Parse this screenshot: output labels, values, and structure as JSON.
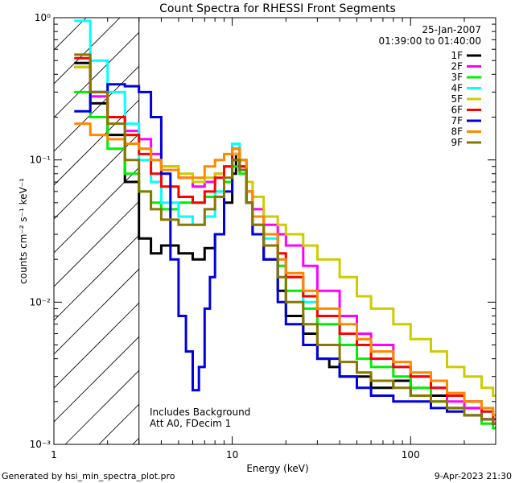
{
  "chart_data": {
    "type": "line",
    "title": "Count Spectra for RHESSI Front Segments",
    "xlabel": "Energy (keV)",
    "ylabel": "counts cm⁻² s⁻¹ keV⁻¹",
    "xscale": "log",
    "yscale": "log",
    "xlim": [
      1,
      300
    ],
    "ylim": [
      0.001,
      1
    ],
    "x_ticks": [
      {
        "value": 1,
        "label": "1"
      },
      {
        "value": 10,
        "label": "10"
      },
      {
        "value": 100,
        "label": "100"
      }
    ],
    "y_ticks": [
      {
        "value": 1,
        "label": "10⁰"
      },
      {
        "value": 0.1,
        "label": "10⁻¹"
      },
      {
        "value": 0.01,
        "label": "10⁻²"
      },
      {
        "value": 0.001,
        "label": "10⁻³"
      }
    ],
    "date_label": "25-Jan-2007",
    "time_label": "01:39:00 to 01:40:00",
    "shaded_region_max_energy": 3,
    "annotations": [
      "Includes Background",
      "Att A0, FDecim 1"
    ],
    "series": [
      {
        "name": "1F",
        "color": "#000000",
        "points": [
          [
            1.3,
            0.48
          ],
          [
            1.6,
            0.25
          ],
          [
            2.0,
            0.15
          ],
          [
            2.5,
            0.07
          ],
          [
            3.0,
            0.028
          ],
          [
            3.5,
            0.022
          ],
          [
            4.0,
            0.025
          ],
          [
            5.0,
            0.022
          ],
          [
            6.0,
            0.02
          ],
          [
            7.0,
            0.024
          ],
          [
            8.0,
            0.03
          ],
          [
            9.0,
            0.05
          ],
          [
            10.0,
            0.08
          ],
          [
            10.5,
            0.11
          ],
          [
            11.0,
            0.1
          ],
          [
            12.0,
            0.05
          ],
          [
            13,
            0.03
          ],
          [
            15,
            0.02
          ],
          [
            18,
            0.012
          ],
          [
            20,
            0.008
          ],
          [
            25,
            0.006
          ],
          [
            30,
            0.004
          ],
          [
            35,
            0.0035
          ],
          [
            40,
            0.003
          ],
          [
            50,
            0.003
          ],
          [
            60,
            0.0025
          ],
          [
            80,
            0.0028
          ],
          [
            100,
            0.0022
          ],
          [
            130,
            0.0022
          ],
          [
            160,
            0.0018
          ],
          [
            200,
            0.0018
          ],
          [
            250,
            0.0015
          ],
          [
            290,
            0.0015
          ]
        ]
      },
      {
        "name": "2F",
        "color": "#ff00ff",
        "points": [
          [
            1.3,
            0.45
          ],
          [
            1.6,
            0.28
          ],
          [
            2.0,
            0.2
          ],
          [
            2.5,
            0.16
          ],
          [
            3.0,
            0.14
          ],
          [
            3.5,
            0.11
          ],
          [
            4.0,
            0.09
          ],
          [
            5.0,
            0.075
          ],
          [
            6.0,
            0.065
          ],
          [
            7.0,
            0.07
          ],
          [
            8.0,
            0.08
          ],
          [
            9.0,
            0.09
          ],
          [
            10.0,
            0.11
          ],
          [
            11.0,
            0.09
          ],
          [
            12,
            0.06
          ],
          [
            13,
            0.045
          ],
          [
            15,
            0.035
          ],
          [
            18,
            0.03
          ],
          [
            20,
            0.025
          ],
          [
            25,
            0.018
          ],
          [
            30,
            0.012
          ],
          [
            40,
            0.008
          ],
          [
            50,
            0.006
          ],
          [
            60,
            0.005
          ],
          [
            80,
            0.0035
          ],
          [
            100,
            0.003
          ],
          [
            130,
            0.0025
          ],
          [
            160,
            0.002
          ],
          [
            200,
            0.0018
          ],
          [
            250,
            0.0015
          ],
          [
            290,
            0.0014
          ]
        ]
      },
      {
        "name": "3F",
        "color": "#00ee00",
        "points": [
          [
            1.3,
            0.3
          ],
          [
            1.6,
            0.2
          ],
          [
            2.0,
            0.12
          ],
          [
            2.5,
            0.08
          ],
          [
            3.0,
            0.06
          ],
          [
            3.5,
            0.05
          ],
          [
            4.0,
            0.045
          ],
          [
            5.0,
            0.05
          ],
          [
            6.0,
            0.05
          ],
          [
            7.0,
            0.055
          ],
          [
            8.0,
            0.06
          ],
          [
            9.0,
            0.07
          ],
          [
            10.0,
            0.09
          ],
          [
            11.0,
            0.08
          ],
          [
            12,
            0.05
          ],
          [
            13,
            0.035
          ],
          [
            15,
            0.025
          ],
          [
            18,
            0.018
          ],
          [
            20,
            0.012
          ],
          [
            25,
            0.009
          ],
          [
            30,
            0.007
          ],
          [
            40,
            0.005
          ],
          [
            50,
            0.004
          ],
          [
            60,
            0.0035
          ],
          [
            80,
            0.003
          ],
          [
            100,
            0.0025
          ],
          [
            130,
            0.002
          ],
          [
            160,
            0.0018
          ],
          [
            200,
            0.0016
          ],
          [
            250,
            0.0014
          ],
          [
            290,
            0.0013
          ]
        ]
      },
      {
        "name": "4F",
        "color": "#00ffff",
        "points": [
          [
            1.3,
            0.95
          ],
          [
            1.6,
            0.5
          ],
          [
            2.0,
            0.3
          ],
          [
            2.5,
            0.18
          ],
          [
            3.0,
            0.1
          ],
          [
            3.5,
            0.07
          ],
          [
            4.0,
            0.05
          ],
          [
            5.0,
            0.04
          ],
          [
            6.0,
            0.035
          ],
          [
            7.0,
            0.04
          ],
          [
            8.0,
            0.06
          ],
          [
            9.0,
            0.09
          ],
          [
            10.0,
            0.13
          ],
          [
            11.0,
            0.1
          ],
          [
            12,
            0.06
          ],
          [
            13,
            0.04
          ],
          [
            15,
            0.028
          ],
          [
            18,
            0.02
          ],
          [
            20,
            0.015
          ],
          [
            25,
            0.01
          ],
          [
            30,
            0.008
          ],
          [
            40,
            0.006
          ],
          [
            50,
            0.005
          ],
          [
            60,
            0.004
          ],
          [
            80,
            0.0035
          ],
          [
            100,
            0.003
          ],
          [
            130,
            0.0025
          ],
          [
            160,
            0.0022
          ],
          [
            200,
            0.002
          ],
          [
            250,
            0.0017
          ],
          [
            290,
            0.0015
          ]
        ]
      },
      {
        "name": "5F",
        "color": "#cccc00",
        "points": [
          [
            1.3,
            0.45
          ],
          [
            1.6,
            0.3
          ],
          [
            2.0,
            0.2
          ],
          [
            2.5,
            0.15
          ],
          [
            3.0,
            0.12
          ],
          [
            3.5,
            0.1
          ],
          [
            4.0,
            0.09
          ],
          [
            5.0,
            0.08
          ],
          [
            6.0,
            0.07
          ],
          [
            7.0,
            0.075
          ],
          [
            8.0,
            0.08
          ],
          [
            9.0,
            0.09
          ],
          [
            10.0,
            0.11
          ],
          [
            11.0,
            0.1
          ],
          [
            12,
            0.07
          ],
          [
            13,
            0.055
          ],
          [
            15,
            0.04
          ],
          [
            18,
            0.035
          ],
          [
            20,
            0.03
          ],
          [
            25,
            0.025
          ],
          [
            30,
            0.02
          ],
          [
            40,
            0.015
          ],
          [
            50,
            0.011
          ],
          [
            60,
            0.009
          ],
          [
            80,
            0.007
          ],
          [
            100,
            0.0055
          ],
          [
            130,
            0.0045
          ],
          [
            160,
            0.0035
          ],
          [
            200,
            0.003
          ],
          [
            250,
            0.0025
          ],
          [
            290,
            0.0022
          ]
        ]
      },
      {
        "name": "6F",
        "color": "#ff0000",
        "points": [
          [
            1.3,
            0.52
          ],
          [
            1.6,
            0.3
          ],
          [
            2.0,
            0.2
          ],
          [
            2.5,
            0.15
          ],
          [
            3.0,
            0.11
          ],
          [
            3.5,
            0.08
          ],
          [
            4.0,
            0.065
          ],
          [
            5.0,
            0.055
          ],
          [
            6.0,
            0.05
          ],
          [
            7.0,
            0.06
          ],
          [
            8.0,
            0.075
          ],
          [
            9.0,
            0.09
          ],
          [
            10.0,
            0.12
          ],
          [
            11.0,
            0.09
          ],
          [
            12,
            0.06
          ],
          [
            13,
            0.04
          ],
          [
            15,
            0.03
          ],
          [
            18,
            0.022
          ],
          [
            20,
            0.015
          ],
          [
            25,
            0.011
          ],
          [
            30,
            0.008
          ],
          [
            40,
            0.006
          ],
          [
            50,
            0.005
          ],
          [
            60,
            0.004
          ],
          [
            80,
            0.0035
          ],
          [
            100,
            0.003
          ],
          [
            130,
            0.0025
          ],
          [
            160,
            0.0022
          ],
          [
            200,
            0.002
          ],
          [
            250,
            0.0017
          ],
          [
            290,
            0.0015
          ]
        ]
      },
      {
        "name": "7F",
        "color": "#0000dd",
        "points": [
          [
            1.3,
            0.22
          ],
          [
            1.6,
            0.3
          ],
          [
            2.0,
            0.34
          ],
          [
            2.5,
            0.33
          ],
          [
            3.0,
            0.3
          ],
          [
            3.5,
            0.2
          ],
          [
            4.0,
            0.08
          ],
          [
            4.5,
            0.02
          ],
          [
            5.0,
            0.008
          ],
          [
            5.5,
            0.0045
          ],
          [
            6.0,
            0.0024
          ],
          [
            6.5,
            0.0035
          ],
          [
            7.0,
            0.009
          ],
          [
            7.5,
            0.015
          ],
          [
            8.0,
            0.03
          ],
          [
            9.0,
            0.06
          ],
          [
            10.0,
            0.1
          ],
          [
            11.0,
            0.085
          ],
          [
            12,
            0.05
          ],
          [
            13,
            0.03
          ],
          [
            15,
            0.02
          ],
          [
            18,
            0.01
          ],
          [
            20,
            0.007
          ],
          [
            25,
            0.005
          ],
          [
            30,
            0.004
          ],
          [
            40,
            0.003
          ],
          [
            50,
            0.0025
          ],
          [
            60,
            0.0022
          ],
          [
            80,
            0.002
          ],
          [
            100,
            0.002
          ],
          [
            130,
            0.0018
          ],
          [
            160,
            0.0017
          ],
          [
            200,
            0.0016
          ],
          [
            250,
            0.0015
          ],
          [
            290,
            0.0014
          ]
        ]
      },
      {
        "name": "8F",
        "color": "#ff8800",
        "points": [
          [
            1.3,
            0.18
          ],
          [
            1.6,
            0.15
          ],
          [
            2.0,
            0.14
          ],
          [
            2.5,
            0.13
          ],
          [
            3.0,
            0.12
          ],
          [
            3.5,
            0.1
          ],
          [
            4.0,
            0.085
          ],
          [
            5.0,
            0.075
          ],
          [
            6.0,
            0.075
          ],
          [
            7.0,
            0.09
          ],
          [
            8.0,
            0.1
          ],
          [
            9.0,
            0.11
          ],
          [
            10.0,
            0.12
          ],
          [
            11.0,
            0.1
          ],
          [
            12,
            0.06
          ],
          [
            13,
            0.04
          ],
          [
            15,
            0.03
          ],
          [
            18,
            0.02
          ],
          [
            20,
            0.016
          ],
          [
            25,
            0.012
          ],
          [
            30,
            0.009
          ],
          [
            40,
            0.007
          ],
          [
            50,
            0.0055
          ],
          [
            60,
            0.0045
          ],
          [
            80,
            0.0038
          ],
          [
            100,
            0.0032
          ],
          [
            130,
            0.0028
          ],
          [
            160,
            0.0023
          ],
          [
            200,
            0.002
          ],
          [
            250,
            0.0018
          ],
          [
            290,
            0.0016
          ]
        ]
      },
      {
        "name": "9F",
        "color": "#887700",
        "points": [
          [
            1.3,
            0.55
          ],
          [
            1.6,
            0.3
          ],
          [
            2.0,
            0.18
          ],
          [
            2.5,
            0.1
          ],
          [
            3.0,
            0.06
          ],
          [
            3.5,
            0.045
          ],
          [
            4.0,
            0.038
          ],
          [
            5.0,
            0.035
          ],
          [
            6.0,
            0.035
          ],
          [
            7.0,
            0.045
          ],
          [
            8.0,
            0.055
          ],
          [
            9.0,
            0.075
          ],
          [
            10.0,
            0.1
          ],
          [
            11.0,
            0.085
          ],
          [
            12,
            0.05
          ],
          [
            13,
            0.035
          ],
          [
            15,
            0.025
          ],
          [
            18,
            0.015
          ],
          [
            20,
            0.01
          ],
          [
            25,
            0.007
          ],
          [
            30,
            0.005
          ],
          [
            40,
            0.0038
          ],
          [
            50,
            0.0032
          ],
          [
            60,
            0.0028
          ],
          [
            80,
            0.0025
          ],
          [
            100,
            0.0022
          ],
          [
            130,
            0.002
          ],
          [
            160,
            0.0018
          ],
          [
            200,
            0.0016
          ],
          [
            250,
            0.0015
          ],
          [
            290,
            0.0014
          ]
        ]
      }
    ]
  },
  "footer": {
    "generated_by": "Generated by hsi_min_spectra_plot.pro",
    "timestamp": "9-Apr-2023 21:30"
  }
}
